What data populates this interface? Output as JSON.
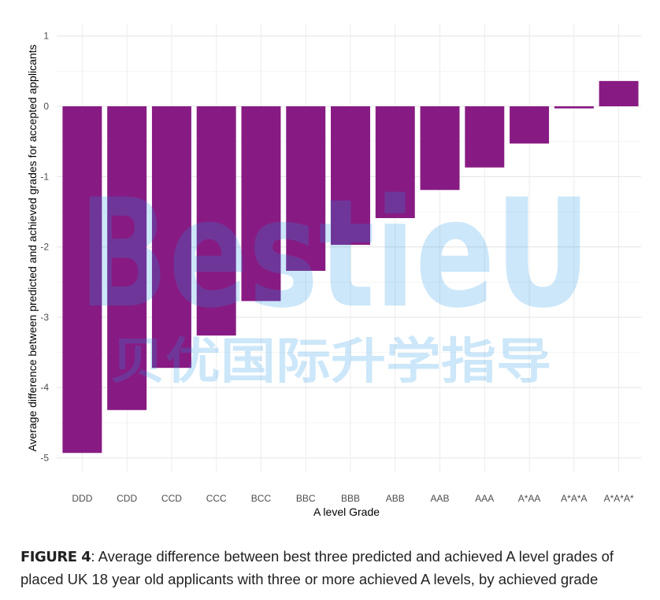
{
  "chart_data": {
    "type": "bar",
    "categories": [
      "DDD",
      "CDD",
      "CCD",
      "CCC",
      "BCC",
      "BBC",
      "BBB",
      "ABB",
      "AAB",
      "AAA",
      "A*AA",
      "A*A*A",
      "A*A*A*"
    ],
    "values": [
      -4.93,
      -4.32,
      -3.72,
      -3.26,
      -2.77,
      -2.34,
      -1.97,
      -1.59,
      -1.19,
      -0.87,
      -0.53,
      -0.03,
      0.36
    ],
    "xlabel": "A level Grade",
    "ylabel": "Average difference between predicted and achieved grades for accepted applicants",
    "ylim": [
      -5.35,
      1.2
    ],
    "yticks": [
      1,
      0,
      -1,
      -2,
      -3,
      -4,
      -5
    ],
    "grid": true,
    "bar_color": "#871b83"
  },
  "watermark": {
    "latin": "BestieU",
    "chinese": "贝优国际升学指导"
  },
  "caption": {
    "label": "FIGURE 4",
    "text": ": Average difference between best three predicted and achieved A level grades of placed UK 18 year old applicants with three or more achieved A levels, by achieved grade"
  }
}
